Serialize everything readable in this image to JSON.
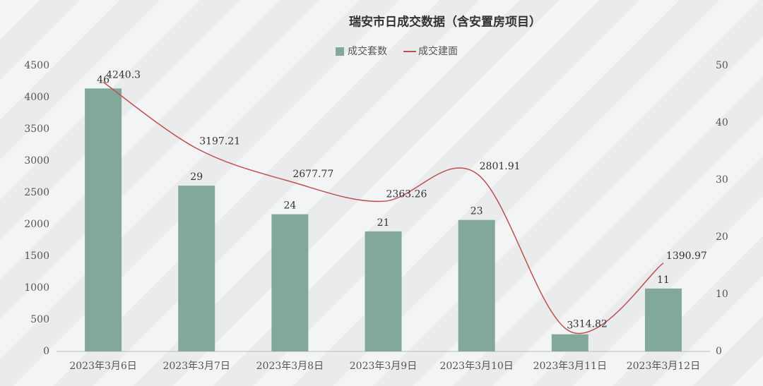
{
  "chart_data": {
    "type": "combo",
    "title": "瑞安市日成交数据（含安置房项目）",
    "categories": [
      "2023年3月6日",
      "2023年3月7日",
      "2023年3月8日",
      "2023年3月9日",
      "2023年3月10日",
      "2023年3月11日",
      "2023年3月12日"
    ],
    "series": [
      {
        "name": "成交套数",
        "type": "bar",
        "axis": "y2",
        "color": "#82a89a",
        "values": [
          46,
          29,
          24,
          21,
          23,
          3,
          11
        ]
      },
      {
        "name": "成交建面",
        "type": "line",
        "color": "#c0504d",
        "values": [
          4240.3,
          3197.21,
          2677.77,
          2363.26,
          2801.91,
          314.82,
          1390.97
        ]
      }
    ],
    "ylim": [
      0,
      4500
    ],
    "yticks": [
      0,
      500,
      1000,
      1500,
      2000,
      2500,
      3000,
      3500,
      4000,
      4500
    ],
    "y2lim": [
      0,
      50
    ],
    "y2ticks": [
      0,
      10,
      20,
      30,
      40,
      50
    ],
    "legend": "top"
  }
}
